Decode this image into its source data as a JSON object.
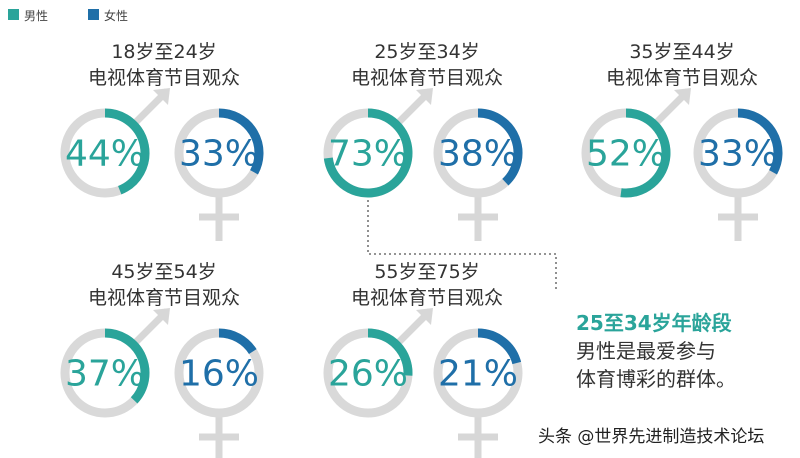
{
  "legend": {
    "male": "男性",
    "female": "女性"
  },
  "colors": {
    "male": "#2aa49a",
    "female": "#1f6fa8",
    "ring_bg": "#d9d9d9",
    "symbol": "#d7d7d7",
    "text": "#333333"
  },
  "chart_data": {
    "type": "donut",
    "series_names": [
      "男性",
      "女性"
    ],
    "groups": [
      {
        "title_line1": "18岁至24岁",
        "title_line2": "电视体育节目观众",
        "male": 44,
        "female": 33,
        "male_label": "44%",
        "female_label": "33%"
      },
      {
        "title_line1": "25岁至34岁",
        "title_line2": "电视体育节目观众",
        "male": 73,
        "female": 38,
        "male_label": "73%",
        "female_label": "38%"
      },
      {
        "title_line1": "35岁至44岁",
        "title_line2": "电视体育节目观众",
        "male": 52,
        "female": 33,
        "male_label": "52%",
        "female_label": "33%"
      },
      {
        "title_line1": "45岁至54岁",
        "title_line2": "电视体育节目观众",
        "male": 37,
        "female": 16,
        "male_label": "37%",
        "female_label": "16%"
      },
      {
        "title_line1": "55岁至75岁",
        "title_line2": "电视体育节目观众",
        "male": 26,
        "female": 21,
        "male_label": "26%",
        "female_label": "21%"
      }
    ]
  },
  "callout": {
    "line1": "25至34岁年龄段",
    "line2": "男性是最爱参与",
    "line3": "体育博彩的群体。"
  },
  "watermark": {
    "text": "头条 @世界先进制造技术论坛"
  }
}
